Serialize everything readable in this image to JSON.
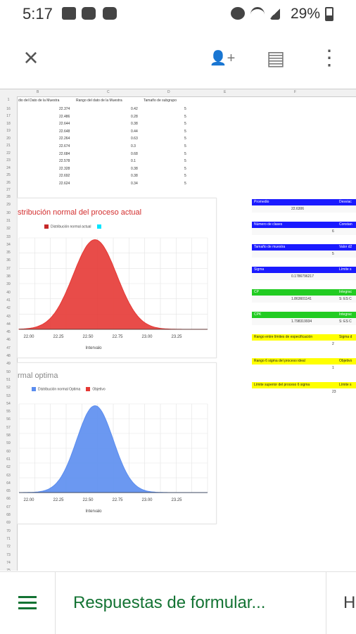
{
  "status_bar": {
    "time": "5:17",
    "battery": "29%"
  },
  "toolbar": {
    "close": "×",
    "share": "👤+",
    "comment": "▤",
    "more": "⋮"
  },
  "sheet": {
    "columns": [
      "B",
      "C",
      "D",
      "E",
      "F"
    ],
    "header_row": [
      "dio del Dato de la Muestra",
      "Rango del dato de la Muestra",
      "Tamaño de subgrupo"
    ],
    "rows": [
      [
        "22.374",
        "0.42",
        "5"
      ],
      [
        "22.486",
        "0.28",
        "5"
      ],
      [
        "22.644",
        "0.38",
        "5"
      ],
      [
        "22.648",
        "0.44",
        "5"
      ],
      [
        "22.264",
        "0.63",
        "5"
      ],
      [
        "22.674",
        "0.3",
        "5"
      ],
      [
        "22.684",
        "0.68",
        "5"
      ],
      [
        "22.578",
        "0.1",
        "5"
      ],
      [
        "22.328",
        "0.38",
        "5"
      ],
      [
        "22.692",
        "0.38",
        "5"
      ],
      [
        "22.624",
        "0.34",
        "5"
      ]
    ],
    "row_numbers_top": [
      "1",
      "16",
      "17",
      "18",
      "19",
      "20",
      "21",
      "22",
      "23",
      "24",
      "25",
      "26",
      "27"
    ],
    "row_numbers": [
      "28",
      "29",
      "30",
      "31",
      "32",
      "33",
      "34",
      "35",
      "36",
      "37",
      "38",
      "39",
      "40",
      "41",
      "42",
      "43",
      "44",
      "45",
      "46",
      "47",
      "48",
      "49",
      "50",
      "51",
      "52",
      "53",
      "54",
      "55",
      "56",
      "57",
      "58",
      "59",
      "60",
      "61",
      "62",
      "63",
      "64",
      "65",
      "66",
      "67",
      "68",
      "69",
      "70",
      "71",
      "72",
      "73",
      "74",
      "75"
    ]
  },
  "chart1": {
    "title": "stribución normal del proceso actual",
    "legend": [
      "Distribución normal actual",
      ""
    ],
    "ticks": [
      "22.00",
      "22.25",
      "22.50",
      "22.75",
      "23.00",
      "23.25"
    ],
    "xlabel": "Intervalo",
    "color": "#e53935"
  },
  "chart2": {
    "title": "rmal optima",
    "legend": [
      "Distribución normal Optima",
      "Objetivo"
    ],
    "ticks": [
      "22.00",
      "22.25",
      "22.50",
      "22.75",
      "23.00",
      "23.25"
    ],
    "xlabel": "Intervalo",
    "color": "#5b8def"
  },
  "panel": [
    {
      "label": "Promedio",
      "right": "Desviac",
      "color": "#1a1aff",
      "value": "22.6306"
    },
    {
      "label": "Número de clases",
      "right": "Constan",
      "color": "#1a1aff",
      "value": "6"
    },
    {
      "label": "Tamaño de muestra",
      "right": "Valor d2",
      "color": "#1a1aff",
      "value": "5"
    },
    {
      "label": "Sigma",
      "right": "Límite s",
      "color": "#1a1aff",
      "value": "0.1786796217"
    },
    {
      "label": "CP",
      "right": "Integrac",
      "color": "#22cc22",
      "value": "1.863601141",
      "extra": "S: ES C"
    },
    {
      "label": "CPK",
      "right": "Integrac",
      "color": "#22cc22",
      "value": "1.798319934",
      "extra": "S: ES C"
    },
    {
      "label": "Rango entre límites de especificación",
      "right": "Sigma d",
      "color": "#ffff00",
      "value": "2",
      "dark": true
    },
    {
      "label": "Rango 6 sigma del proceso ideal",
      "right": "Objetivo",
      "color": "#ffff00",
      "value": "1",
      "dark": true
    },
    {
      "label": "Límite superior del proceso 6 sigma",
      "right": "Límite s",
      "color": "#ffff00",
      "value": "23",
      "dark": true
    }
  ],
  "bottom_bar": {
    "tab_active": "Respuestas de formular...",
    "tab_next": "H"
  }
}
